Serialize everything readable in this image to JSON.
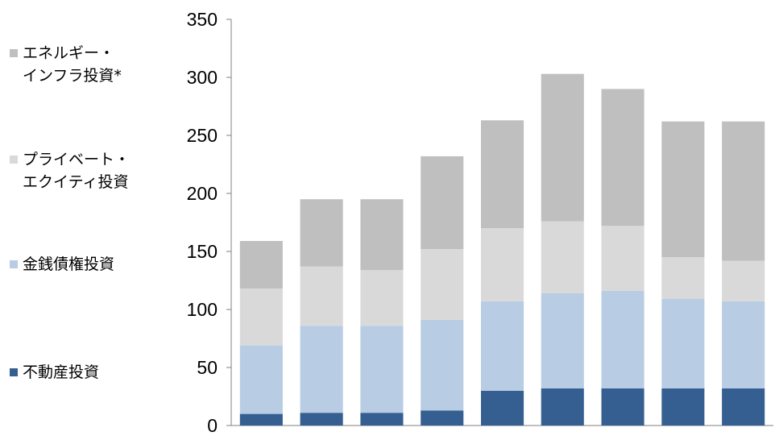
{
  "chart_data": {
    "type": "bar",
    "stacked": true,
    "categories": [
      "",
      "",
      "",
      "",
      "",
      "",
      "",
      "",
      ""
    ],
    "ylim": [
      0,
      350
    ],
    "yticks": [
      "0",
      "50",
      "100",
      "150",
      "200",
      "250",
      "300",
      "350"
    ],
    "grid": false,
    "legend_position": "left",
    "series": [
      {
        "name": "不動産投資",
        "color": "#355F91",
        "values": [
          10,
          11,
          11,
          13,
          30,
          32,
          32,
          32,
          32
        ]
      },
      {
        "name": "金銭債権投資",
        "color": "#B8CCE4",
        "values": [
          59,
          75,
          75,
          78,
          77,
          82,
          84,
          77,
          75
        ]
      },
      {
        "name": "プライベート・エクイティ投資",
        "color": "#D9D9D9",
        "values": [
          49,
          51,
          48,
          61,
          63,
          62,
          56,
          36,
          35
        ]
      },
      {
        "name": "エネルギー・インフラ投資*",
        "color": "#BFBFBF",
        "values": [
          41,
          58,
          61,
          80,
          93,
          127,
          118,
          117,
          120
        ]
      }
    ]
  },
  "legend": {
    "items": [
      {
        "line1": "エネルギー・",
        "line2": "インフラ投資*",
        "color": "#BFBFBF"
      },
      {
        "line1": "プライベート・",
        "line2": "エクイティ投資",
        "color": "#D9D9D9"
      },
      {
        "line1": "金銭債権投資",
        "line2": "",
        "color": "#B8CCE4"
      },
      {
        "line1": "不動産投資",
        "line2": "",
        "color": "#355F91"
      }
    ]
  }
}
